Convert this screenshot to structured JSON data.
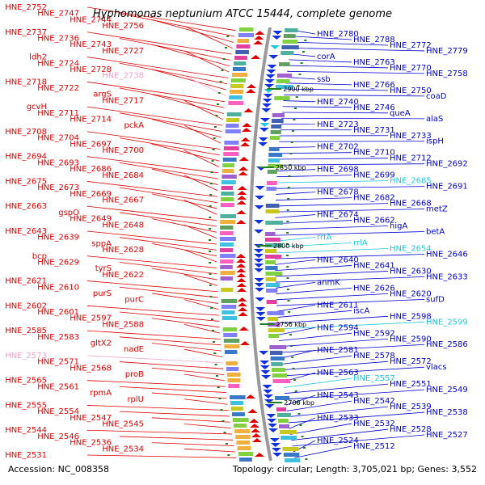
{
  "title": "Hyphomonas neptunium ATCC 15444, complete genome",
  "footer": {
    "accession": "Accession: NC_008358",
    "stats": "Topology: circular; Length: 3,705,021 bp; Genes: 3,552"
  },
  "colors": {
    "left_label": "#e00000",
    "left_label_alt": "#f2a0c8",
    "right_label": "#0000d0",
    "right_label_alt": "#20c8e0",
    "axis": "#999999",
    "tick": "#208020"
  },
  "kbp_marks": [
    "2900 kbp",
    "2850 kbp",
    "2800 kbp",
    "2750 kbp",
    "2700 kbp"
  ],
  "left_labels": [
    {
      "text": "HNE_2752",
      "c": "n"
    },
    {
      "text": "HNE_2747",
      "c": "n"
    },
    {
      "text": "HNE_2744",
      "c": "n"
    },
    {
      "text": "HNE_2756",
      "c": "n"
    },
    {
      "text": "HNE_2737",
      "c": "n"
    },
    {
      "text": "HNE_2736",
      "c": "n"
    },
    {
      "text": "HNE_2743",
      "c": "n"
    },
    {
      "text": "HNE_2727",
      "c": "n"
    },
    {
      "text": "ldh2",
      "c": "n"
    },
    {
      "text": "HNE_2724",
      "c": "n"
    },
    {
      "text": "HNE_2728",
      "c": "n"
    },
    {
      "text": "HNE_2738",
      "c": "p"
    },
    {
      "text": "HNE_2718",
      "c": "n"
    },
    {
      "text": "HNE_2722",
      "c": "n"
    },
    {
      "text": "argS",
      "c": "n"
    },
    {
      "text": "HNE_2717",
      "c": "n"
    },
    {
      "text": "gcvH",
      "c": "n"
    },
    {
      "text": "HNE_2711",
      "c": "n"
    },
    {
      "text": "HNE_2714",
      "c": "n"
    },
    {
      "text": "pckA",
      "c": "n"
    },
    {
      "text": "HNE_2708",
      "c": "n"
    },
    {
      "text": "HNE_2704",
      "c": "n"
    },
    {
      "text": "HNE_2697",
      "c": "n"
    },
    {
      "text": "HNE_2700",
      "c": "n"
    },
    {
      "text": "HNE_2694",
      "c": "n"
    },
    {
      "text": "HNE_2693",
      "c": "n"
    },
    {
      "text": "HNE_2686",
      "c": "n"
    },
    {
      "text": "HNE_2684",
      "c": "n"
    },
    {
      "text": "HNE_2675",
      "c": "n"
    },
    {
      "text": "HNE_2673",
      "c": "n"
    },
    {
      "text": "HNE_2669",
      "c": "n"
    },
    {
      "text": "HNE_2667",
      "c": "n"
    },
    {
      "text": "HNE_2663",
      "c": "n"
    },
    {
      "text": "gspO",
      "c": "n"
    },
    {
      "text": "HNE_2649",
      "c": "n"
    },
    {
      "text": "HNE_2648",
      "c": "n"
    },
    {
      "text": "HNE_2643",
      "c": "n"
    },
    {
      "text": "HNE_2639",
      "c": "n"
    },
    {
      "text": "sppA",
      "c": "n"
    },
    {
      "text": "HNE_2628",
      "c": "n"
    },
    {
      "text": "bcp",
      "c": "n"
    },
    {
      "text": "HNE_2629",
      "c": "n"
    },
    {
      "text": "tyrS",
      "c": "n"
    },
    {
      "text": "HNE_2622",
      "c": "n"
    },
    {
      "text": "HNE_2621",
      "c": "n"
    },
    {
      "text": "HNE_2610",
      "c": "n"
    },
    {
      "text": "purS",
      "c": "n"
    },
    {
      "text": "purC",
      "c": "n"
    },
    {
      "text": "HNE_2602",
      "c": "n"
    },
    {
      "text": "HNE_2601",
      "c": "n"
    },
    {
      "text": "HNE_2597",
      "c": "n"
    },
    {
      "text": "HNE_2588",
      "c": "n"
    },
    {
      "text": "HNE_2585",
      "c": "n"
    },
    {
      "text": "HNE_2583",
      "c": "n"
    },
    {
      "text": "gltX2",
      "c": "n"
    },
    {
      "text": "nadE",
      "c": "n"
    },
    {
      "text": "HNE_2573",
      "c": "p"
    },
    {
      "text": "HNE_2571",
      "c": "n"
    },
    {
      "text": "HNE_2568",
      "c": "n"
    },
    {
      "text": "proB",
      "c": "n"
    },
    {
      "text": "HNE_2565",
      "c": "n"
    },
    {
      "text": "HNE_2561",
      "c": "n"
    },
    {
      "text": "rpmA",
      "c": "n"
    },
    {
      "text": "rplU",
      "c": "n"
    },
    {
      "text": "HNE_2555",
      "c": "n"
    },
    {
      "text": "HNE_2554",
      "c": "n"
    },
    {
      "text": "HNE_2547",
      "c": "n"
    },
    {
      "text": "HNE_2545",
      "c": "n"
    },
    {
      "text": "HNE_2544",
      "c": "n"
    },
    {
      "text": "HNE_2546",
      "c": "n"
    },
    {
      "text": "HNE_2536",
      "c": "n"
    },
    {
      "text": "HNE_2534",
      "c": "n"
    },
    {
      "text": "HNE_2531",
      "c": "n"
    }
  ],
  "right_labels": [
    {
      "text": "HNE_2780",
      "c": "n"
    },
    {
      "text": "HNE_2788",
      "c": "n"
    },
    {
      "text": "HNE_2772",
      "c": "n"
    },
    {
      "text": "HNE_2779",
      "c": "n"
    },
    {
      "text": "corA",
      "c": "n"
    },
    {
      "text": "HNE_2763",
      "c": "n"
    },
    {
      "text": "HNE_2770",
      "c": "n"
    },
    {
      "text": "HNE_2758",
      "c": "n"
    },
    {
      "text": "ssb",
      "c": "n"
    },
    {
      "text": "HNE_2766",
      "c": "n"
    },
    {
      "text": "HNE_2750",
      "c": "n"
    },
    {
      "text": "coaD",
      "c": "n"
    },
    {
      "text": "HNE_2740",
      "c": "n"
    },
    {
      "text": "HNE_2746",
      "c": "n"
    },
    {
      "text": "queA",
      "c": "n"
    },
    {
      "text": "alaS",
      "c": "n"
    },
    {
      "text": "HNE_2723",
      "c": "n"
    },
    {
      "text": "HNE_2731",
      "c": "n"
    },
    {
      "text": "HNE_2733",
      "c": "n"
    },
    {
      "text": "ispH",
      "c": "n"
    },
    {
      "text": "HNE_2702",
      "c": "n"
    },
    {
      "text": "HNE_2710",
      "c": "n"
    },
    {
      "text": "HNE_2712",
      "c": "n"
    },
    {
      "text": "HNE_2692",
      "c": "n"
    },
    {
      "text": "HNE_2698",
      "c": "n"
    },
    {
      "text": "HNE_2699",
      "c": "n"
    },
    {
      "text": "HNE_2685",
      "c": "c"
    },
    {
      "text": "HNE_2691",
      "c": "n"
    },
    {
      "text": "HNE_2678",
      "c": "n"
    },
    {
      "text": "HNE_2682",
      "c": "n"
    },
    {
      "text": "HNE_2668",
      "c": "n"
    },
    {
      "text": "metZ",
      "c": "n"
    },
    {
      "text": "HNE_2674",
      "c": "n"
    },
    {
      "text": "HNE_2662",
      "c": "n"
    },
    {
      "text": "higA",
      "c": "n"
    },
    {
      "text": "betA",
      "c": "n"
    },
    {
      "text": "rrfA",
      "c": "c"
    },
    {
      "text": "rrlA",
      "c": "c"
    },
    {
      "text": "HNE_2654",
      "c": "c"
    },
    {
      "text": "HNE_2646",
      "c": "n"
    },
    {
      "text": "HNE_2640",
      "c": "n"
    },
    {
      "text": "HNE_2641",
      "c": "n"
    },
    {
      "text": "HNE_2630",
      "c": "n"
    },
    {
      "text": "HNE_2633",
      "c": "n"
    },
    {
      "text": "anmK",
      "c": "n"
    },
    {
      "text": "HNE_2626",
      "c": "n"
    },
    {
      "text": "HNE_2620",
      "c": "n"
    },
    {
      "text": "sufD",
      "c": "n"
    },
    {
      "text": "HNE_2611",
      "c": "n"
    },
    {
      "text": "iscA",
      "c": "n"
    },
    {
      "text": "HNE_2598",
      "c": "n"
    },
    {
      "text": "HNE_2599",
      "c": "c"
    },
    {
      "text": "HNE_2594",
      "c": "n"
    },
    {
      "text": "HNE_2592",
      "c": "n"
    },
    {
      "text": "HNE_2590",
      "c": "n"
    },
    {
      "text": "HNE_2586",
      "c": "n"
    },
    {
      "text": "HNE_2581",
      "c": "n"
    },
    {
      "text": "HNE_2578",
      "c": "n"
    },
    {
      "text": "HNE_2572",
      "c": "n"
    },
    {
      "text": "vlacs",
      "c": "n"
    },
    {
      "text": "HNE_2563",
      "c": "n"
    },
    {
      "text": "HNE_2557",
      "c": "c"
    },
    {
      "text": "HNE_2551",
      "c": "n"
    },
    {
      "text": "HNE_2549",
      "c": "n"
    },
    {
      "text": "HNE_2543",
      "c": "n"
    },
    {
      "text": "HNE_2542",
      "c": "n"
    },
    {
      "text": "HNE_2539",
      "c": "n"
    },
    {
      "text": "HNE_2538",
      "c": "n"
    },
    {
      "text": "HNE_2533",
      "c": "n"
    },
    {
      "text": "HNE_2532",
      "c": "n"
    },
    {
      "text": "HNE_2528",
      "c": "n"
    },
    {
      "text": "HNE_2527",
      "c": "n"
    },
    {
      "text": "HNE_2524",
      "c": "n"
    },
    {
      "text": "HNE_2512",
      "c": "n"
    }
  ]
}
